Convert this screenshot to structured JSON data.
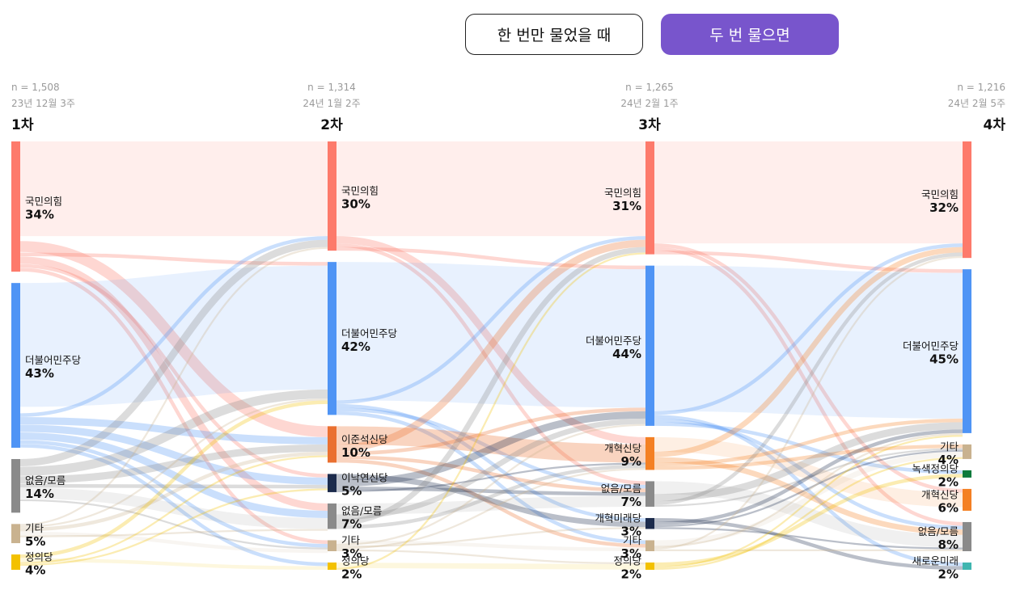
{
  "toggles": {
    "once_label": "한 번만 물었을 때",
    "twice_label": "두 번 물으면",
    "active": "twice",
    "active_color": "#7855cc"
  },
  "chart_data": {
    "type": "sankey",
    "title": "",
    "waves": [
      {
        "label": "1차",
        "n": "n = 1,508",
        "date": "23년 12월 3주",
        "nodes": [
          {
            "id": "ppp",
            "name": "국민의힘",
            "value": 34,
            "pct": "34%",
            "color": "#fd7a6b"
          },
          {
            "id": "dem",
            "name": "더불어민주당",
            "value": 43,
            "pct": "43%",
            "color": "#4f94f5"
          },
          {
            "id": "none",
            "name": "없음/모름",
            "value": 14,
            "pct": "14%",
            "color": "#8a8a8a"
          },
          {
            "id": "etc",
            "name": "기타",
            "value": 5,
            "pct": "5%",
            "color": "#c9b28f"
          },
          {
            "id": "justice",
            "name": "정의당",
            "value": 4,
            "pct": "4%",
            "color": "#f3c100"
          }
        ]
      },
      {
        "label": "2차",
        "n": "n = 1,314",
        "date": "24년 1월 2주",
        "nodes": [
          {
            "id": "ppp",
            "name": "국민의힘",
            "value": 30,
            "pct": "30%",
            "color": "#fd7a6b"
          },
          {
            "id": "dem",
            "name": "더불어민주당",
            "value": 42,
            "pct": "42%",
            "color": "#4f94f5"
          },
          {
            "id": "ljs",
            "name": "이준석신당",
            "value": 10,
            "pct": "10%",
            "color": "#ea7030"
          },
          {
            "id": "lny",
            "name": "이낙연신당",
            "value": 5,
            "pct": "5%",
            "color": "#1c2b4c"
          },
          {
            "id": "none",
            "name": "없음/모름",
            "value": 7,
            "pct": "7%",
            "color": "#8a8a8a"
          },
          {
            "id": "etc",
            "name": "기타",
            "value": 3,
            "pct": "3%",
            "color": "#c9b28f"
          },
          {
            "id": "justice",
            "name": "정의당",
            "value": 2,
            "pct": "2%",
            "color": "#f3c100"
          }
        ]
      },
      {
        "label": "3차",
        "n": "n = 1,265",
        "date": "24년 2월 1주",
        "nodes": [
          {
            "id": "ppp",
            "name": "국민의힘",
            "value": 31,
            "pct": "31%",
            "color": "#fd7a6b"
          },
          {
            "id": "dem",
            "name": "더불어민주당",
            "value": 44,
            "pct": "44%",
            "color": "#4f94f5"
          },
          {
            "id": "reform",
            "name": "개혁신당",
            "value": 9,
            "pct": "9%",
            "color": "#f48024"
          },
          {
            "id": "none",
            "name": "없음/모름",
            "value": 7,
            "pct": "7%",
            "color": "#8a8a8a"
          },
          {
            "id": "reformfuture",
            "name": "개혁미래당",
            "value": 3,
            "pct": "3%",
            "color": "#1c2b4c"
          },
          {
            "id": "etc",
            "name": "기타",
            "value": 3,
            "pct": "3%",
            "color": "#c9b28f"
          },
          {
            "id": "justice",
            "name": "정의당",
            "value": 2,
            "pct": "2%",
            "color": "#f3c100"
          }
        ]
      },
      {
        "label": "4차",
        "n": "n = 1,216",
        "date": "24년 2월 5주",
        "nodes": [
          {
            "id": "ppp",
            "name": "국민의힘",
            "value": 32,
            "pct": "32%",
            "color": "#fd7a6b"
          },
          {
            "id": "dem",
            "name": "더불어민주당",
            "value": 45,
            "pct": "45%",
            "color": "#4f94f5"
          },
          {
            "id": "etc",
            "name": "기타",
            "value": 4,
            "pct": "4%",
            "color": "#c9b28f"
          },
          {
            "id": "green",
            "name": "녹색정의당",
            "value": 2,
            "pct": "2%",
            "color": "#0e7a3c"
          },
          {
            "id": "reform",
            "name": "개혁신당",
            "value": 6,
            "pct": "6%",
            "color": "#f48024"
          },
          {
            "id": "none",
            "name": "없음/모름",
            "value": 8,
            "pct": "8%",
            "color": "#8a8a8a"
          },
          {
            "id": "newfuture",
            "name": "새로운미래",
            "value": 2,
            "pct": "2%",
            "color": "#3fb5b0"
          }
        ]
      }
    ],
    "flows": [
      [
        {
          "from": "ppp",
          "to": "ppp",
          "value": 26
        },
        {
          "from": "ppp",
          "to": "ljs",
          "value": 3
        },
        {
          "from": "ppp",
          "to": "dem",
          "value": 1
        },
        {
          "from": "ppp",
          "to": "none",
          "value": 2
        },
        {
          "from": "ppp",
          "to": "lny",
          "value": 1
        },
        {
          "from": "ppp",
          "to": "etc",
          "value": 1
        },
        {
          "from": "dem",
          "to": "dem",
          "value": 34
        },
        {
          "from": "dem",
          "to": "ppp",
          "value": 1
        },
        {
          "from": "dem",
          "to": "ljs",
          "value": 2
        },
        {
          "from": "dem",
          "to": "lny",
          "value": 2
        },
        {
          "from": "dem",
          "to": "none",
          "value": 2
        },
        {
          "from": "dem",
          "to": "etc",
          "value": 1
        },
        {
          "from": "dem",
          "to": "justice",
          "value": 1
        },
        {
          "from": "none",
          "to": "ppp",
          "value": 2
        },
        {
          "from": "none",
          "to": "dem",
          "value": 2.5
        },
        {
          "from": "none",
          "to": "ljs",
          "value": 2
        },
        {
          "from": "none",
          "to": "lny",
          "value": 1
        },
        {
          "from": "none",
          "to": "none",
          "value": 3
        },
        {
          "from": "none",
          "to": "etc",
          "value": 0.5
        },
        {
          "from": "etc",
          "to": "ppp",
          "value": 0.5
        },
        {
          "from": "etc",
          "to": "dem",
          "value": 0.5
        },
        {
          "from": "etc",
          "to": "ljs",
          "value": 1
        },
        {
          "from": "etc",
          "to": "etc",
          "value": 1
        },
        {
          "from": "etc",
          "to": "none",
          "value": 0.5
        },
        {
          "from": "justice",
          "to": "dem",
          "value": 1
        },
        {
          "from": "justice",
          "to": "justice",
          "value": 1
        },
        {
          "from": "justice",
          "to": "ljs",
          "value": 0.5
        },
        {
          "from": "justice",
          "to": "lny",
          "value": 0.5
        }
      ],
      [
        {
          "from": "ppp",
          "to": "ppp",
          "value": 26
        },
        {
          "from": "ppp",
          "to": "reform",
          "value": 2
        },
        {
          "from": "ppp",
          "to": "none",
          "value": 1
        },
        {
          "from": "ppp",
          "to": "dem",
          "value": 1
        },
        {
          "from": "dem",
          "to": "dem",
          "value": 38
        },
        {
          "from": "dem",
          "to": "ppp",
          "value": 1
        },
        {
          "from": "dem",
          "to": "reformfuture",
          "value": 1
        },
        {
          "from": "dem",
          "to": "none",
          "value": 1
        },
        {
          "from": "dem",
          "to": "etc",
          "value": 1
        },
        {
          "from": "ljs",
          "to": "reform",
          "value": 5
        },
        {
          "from": "ljs",
          "to": "ppp",
          "value": 2
        },
        {
          "from": "ljs",
          "to": "dem",
          "value": 1
        },
        {
          "from": "ljs",
          "to": "none",
          "value": 1
        },
        {
          "from": "ljs",
          "to": "etc",
          "value": 1
        },
        {
          "from": "lny",
          "to": "reformfuture",
          "value": 1.5
        },
        {
          "from": "lny",
          "to": "dem",
          "value": 2
        },
        {
          "from": "lny",
          "to": "none",
          "value": 1
        },
        {
          "from": "lny",
          "to": "reform",
          "value": 0.5
        },
        {
          "from": "none",
          "to": "none",
          "value": 3
        },
        {
          "from": "none",
          "to": "dem",
          "value": 1.5
        },
        {
          "from": "none",
          "to": "ppp",
          "value": 1.5
        },
        {
          "from": "none",
          "to": "reform",
          "value": 1
        },
        {
          "from": "etc",
          "to": "etc",
          "value": 1
        },
        {
          "from": "etc",
          "to": "dem",
          "value": 0.5
        },
        {
          "from": "etc",
          "to": "reformfuture",
          "value": 0.5
        },
        {
          "from": "etc",
          "to": "reform",
          "value": 0.5
        },
        {
          "from": "etc",
          "to": "justice",
          "value": 0.5
        },
        {
          "from": "justice",
          "to": "justice",
          "value": 1.5
        },
        {
          "from": "justice",
          "to": "ppp",
          "value": 0.5
        }
      ],
      [
        {
          "from": "ppp",
          "to": "ppp",
          "value": 28
        },
        {
          "from": "ppp",
          "to": "reform",
          "value": 1
        },
        {
          "from": "ppp",
          "to": "none",
          "value": 1
        },
        {
          "from": "ppp",
          "to": "dem",
          "value": 1
        },
        {
          "from": "dem",
          "to": "dem",
          "value": 40
        },
        {
          "from": "dem",
          "to": "ppp",
          "value": 1
        },
        {
          "from": "dem",
          "to": "newfuture",
          "value": 1
        },
        {
          "from": "dem",
          "to": "none",
          "value": 1
        },
        {
          "from": "dem",
          "to": "green",
          "value": 1
        },
        {
          "from": "reform",
          "to": "reform",
          "value": 4
        },
        {
          "from": "reform",
          "to": "ppp",
          "value": 1.5
        },
        {
          "from": "reform",
          "to": "none",
          "value": 1.5
        },
        {
          "from": "reform",
          "to": "dem",
          "value": 1
        },
        {
          "from": "reform",
          "to": "etc",
          "value": 1
        },
        {
          "from": "none",
          "to": "none",
          "value": 3.5
        },
        {
          "from": "none",
          "to": "dem",
          "value": 2
        },
        {
          "from": "none",
          "to": "ppp",
          "value": 1
        },
        {
          "from": "none",
          "to": "etc",
          "value": 0.5
        },
        {
          "from": "reformfuture",
          "to": "newfuture",
          "value": 1
        },
        {
          "from": "reformfuture",
          "to": "dem",
          "value": 1
        },
        {
          "from": "reformfuture",
          "to": "etc",
          "value": 0.5
        },
        {
          "from": "reformfuture",
          "to": "none",
          "value": 0.5
        },
        {
          "from": "etc",
          "to": "etc",
          "value": 1.5
        },
        {
          "from": "etc",
          "to": "dem",
          "value": 0.5
        },
        {
          "from": "etc",
          "to": "ppp",
          "value": 0.5
        },
        {
          "from": "etc",
          "to": "none",
          "value": 0.5
        },
        {
          "from": "justice",
          "to": "green",
          "value": 1
        },
        {
          "from": "justice",
          "to": "dem",
          "value": 0.5
        },
        {
          "from": "justice",
          "to": "etc",
          "value": 0.5
        }
      ]
    ]
  }
}
